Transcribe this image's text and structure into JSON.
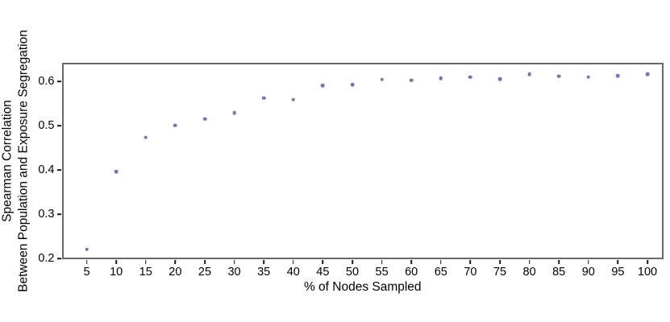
{
  "chart_data": {
    "type": "scatter",
    "title": "",
    "xlabel": "% of Nodes Sampled",
    "ylabel_lines": [
      "Spearman Correlation",
      "Between Population and Exposure Segregation"
    ],
    "x": [
      5,
      10,
      15,
      20,
      25,
      30,
      35,
      40,
      45,
      50,
      55,
      60,
      65,
      70,
      75,
      80,
      85,
      90,
      95,
      100
    ],
    "y": [
      0.221,
      0.397,
      0.474,
      0.501,
      0.516,
      0.529,
      0.563,
      0.559,
      0.591,
      0.593,
      0.605,
      0.603,
      0.607,
      0.61,
      0.606,
      0.617,
      0.612,
      0.61,
      0.613,
      0.617
    ],
    "x_ticks": [
      5,
      10,
      15,
      20,
      25,
      30,
      35,
      40,
      45,
      50,
      55,
      60,
      65,
      70,
      75,
      80,
      85,
      90,
      95,
      100
    ],
    "x_tick_labels": [
      "5",
      "10",
      "15",
      "20",
      "25",
      "30",
      "35",
      "40",
      "45",
      "50",
      "55",
      "60",
      "65",
      "70",
      "75",
      "80",
      "85",
      "90",
      "95",
      "100"
    ],
    "y_ticks": [
      0.2,
      0.3,
      0.4,
      0.5,
      0.6
    ],
    "y_tick_labels": [
      "0.2",
      "0.3",
      "0.4",
      "0.5",
      "0.6"
    ],
    "xlim": [
      0.76,
      102.73
    ],
    "ylim": [
      0.1987,
      0.6433
    ],
    "grid": false,
    "legend_position": "none",
    "point_color": "#7673b7",
    "frame_color": "#696969",
    "tick_color": "#1a1a1a",
    "text_color": "#000000",
    "background_color": "#ffffff"
  }
}
